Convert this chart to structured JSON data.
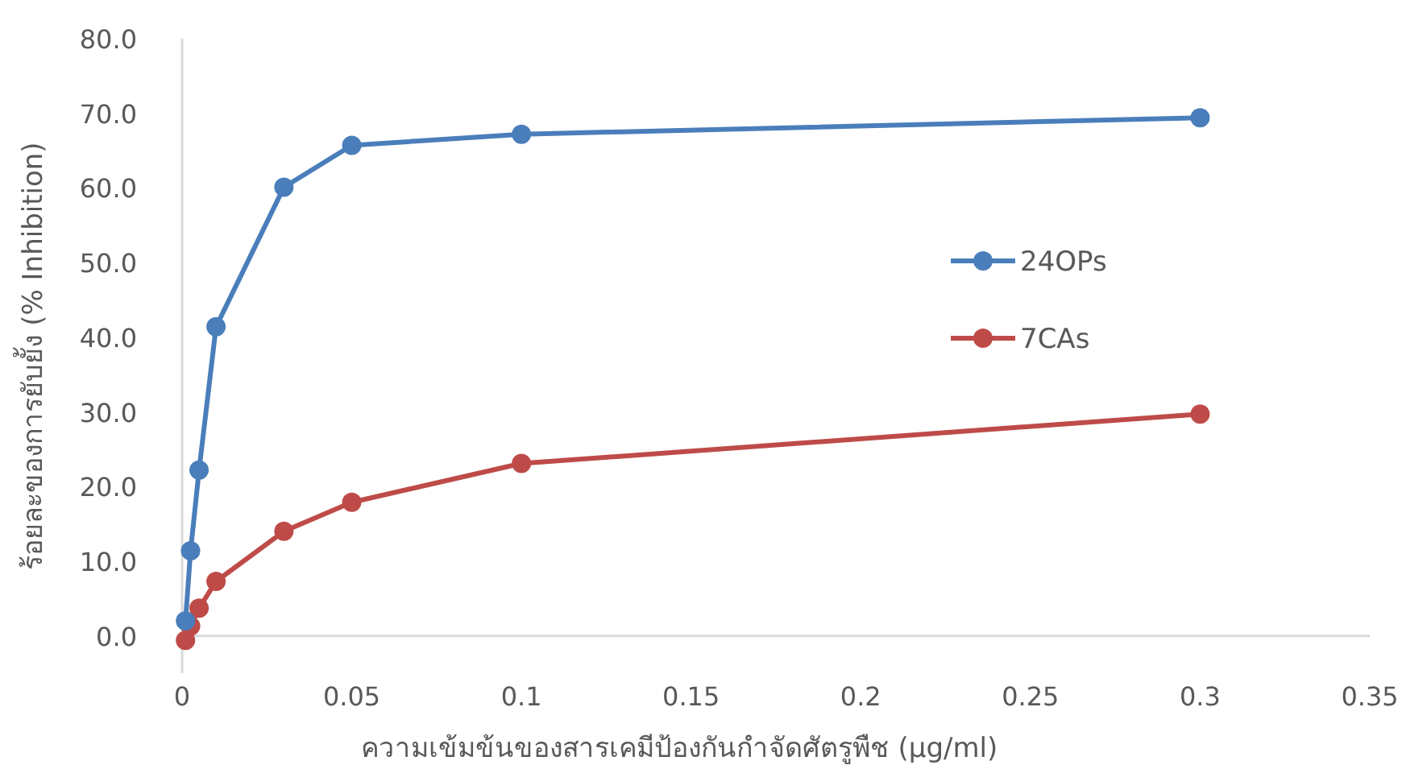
{
  "chart_data": {
    "type": "line",
    "xlabel": "ความเข้มข้นของสารเคมีป้องกันกำจัดศัตรูพืช  (µg/ml)",
    "ylabel": "ร้อยละของการยับยั้ง (% Inhibition)",
    "xlim": [
      0,
      0.35
    ],
    "xticks": [
      0,
      0.05,
      0.1,
      0.15,
      0.2,
      0.25,
      0.3,
      0.35
    ],
    "ylim": [
      -5,
      80
    ],
    "yticks": [
      {
        "value": 0,
        "label": "0.0"
      },
      {
        "value": 10,
        "label": "10.0"
      },
      {
        "value": 20,
        "label": "20.0"
      },
      {
        "value": 30,
        "label": "30.0"
      },
      {
        "value": 40,
        "label": "40.0"
      },
      {
        "value": 50,
        "label": "50.0"
      },
      {
        "value": 60,
        "label": "60.0"
      },
      {
        "value": 70,
        "label": "70.0"
      },
      {
        "value": 80,
        "label": "80.0"
      }
    ],
    "x": [
      0.001,
      0.0025,
      0.005,
      0.01,
      0.03,
      0.05,
      0.1,
      0.3
    ],
    "series": [
      {
        "name": "24OPs",
        "color": "#4a7ebb",
        "values": [
          2.0,
          11.4,
          22.2,
          41.4,
          60.1,
          65.7,
          67.2,
          69.4
        ]
      },
      {
        "name": "7CAs",
        "color": "#be4b48",
        "values": [
          -0.6,
          1.3,
          3.7,
          7.3,
          14.0,
          17.9,
          23.1,
          29.7
        ]
      }
    ],
    "marker": "circle",
    "legend": "right",
    "grid": false
  }
}
